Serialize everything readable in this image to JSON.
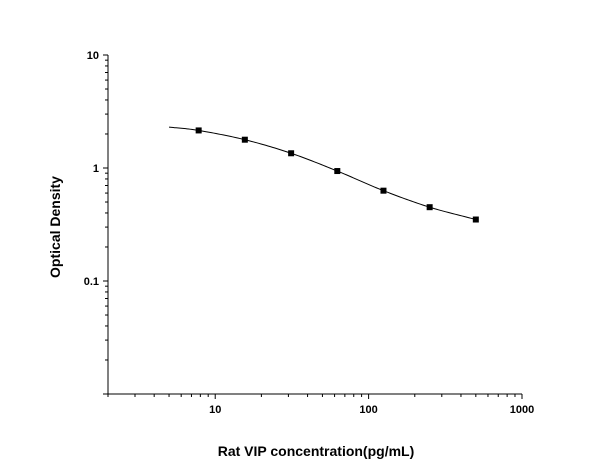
{
  "chart_data": {
    "type": "scatter",
    "title": "",
    "xlabel": "Rat VIP concentration(pg/mL)",
    "ylabel": "Optical Density",
    "x_scale": "log",
    "y_scale": "log",
    "xlim": [
      2,
      1000
    ],
    "ylim": [
      0.01,
      10
    ],
    "x_tick_labels": [
      "10",
      "100",
      "1000"
    ],
    "y_tick_labels": [
      "10",
      "1",
      "0.1"
    ],
    "grid": false,
    "legend": "none",
    "marker": "square",
    "color": "#000000",
    "points": {
      "x": [
        7.8,
        15.6,
        31.25,
        62.5,
        125,
        250,
        500
      ],
      "y": [
        2.15,
        1.78,
        1.35,
        0.94,
        0.63,
        0.45,
        0.35
      ]
    },
    "fit_curve": {
      "x": [
        5,
        7.8,
        15.6,
        31.25,
        62.5,
        125,
        250,
        500
      ],
      "y": [
        2.3,
        2.15,
        1.78,
        1.35,
        0.94,
        0.63,
        0.45,
        0.35
      ]
    }
  }
}
